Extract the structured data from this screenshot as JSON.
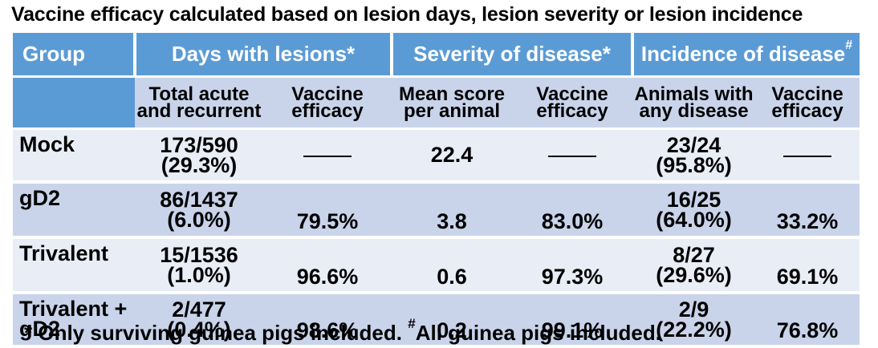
{
  "title": "Vaccine efficacy calculated based on lesion days, lesion severity or lesion incidence",
  "header": {
    "group": "Group",
    "days": "Days with lesions*",
    "severity": "Severity of disease*",
    "incidence": "Incidence of disease",
    "incidence_mark": "#"
  },
  "subheader": {
    "total": "Total acute and recurrent",
    "ve1": "Vaccine efficacy",
    "mean_score": "Mean score per animal",
    "ve2": "Vaccine efficacy",
    "animals": "Animals with any disease",
    "ve3": "Vaccine efficacy"
  },
  "rows": [
    {
      "group": "Mock",
      "days_total": "173/590",
      "days_pct": "(29.3%)",
      "days_ve": "",
      "score": "22.4",
      "sev_ve": "",
      "animals": "23/24",
      "animals_pct": "(95.8%)",
      "inc_ve": ""
    },
    {
      "group": "gD2",
      "days_total": "86/1437",
      "days_pct": "(6.0%)",
      "days_ve": "79.5%",
      "score": "3.8",
      "sev_ve": "83.0%",
      "animals": "16/25",
      "animals_pct": "(64.0%)",
      "inc_ve": "33.2%"
    },
    {
      "group": "Trivalent",
      "days_total": "15/1536",
      "days_pct": "(1.0%)",
      "days_ve": "96.6%",
      "score": "0.6",
      "sev_ve": "97.3%",
      "animals": "8/27",
      "animals_pct": "(29.6%)",
      "inc_ve": "69.1%"
    },
    {
      "group": "Trivalent + gD2",
      "days_total": "2/477",
      "days_pct": "(0.4%)",
      "days_ve": "98.6%",
      "score": "0.2",
      "sev_ve": "99.1%",
      "animals": "2/9",
      "animals_pct": "(22.2%)",
      "inc_ve": "76.8%"
    }
  ],
  "footnote": {
    "part1": "* Only surviving guinea pigs included.",
    "mark": "#",
    "part2": "All guinea pigs included."
  },
  "colors": {
    "header_blue": "#5b9bd5",
    "row_light": "#e9edf5",
    "row_dark": "#c9d4ea"
  }
}
